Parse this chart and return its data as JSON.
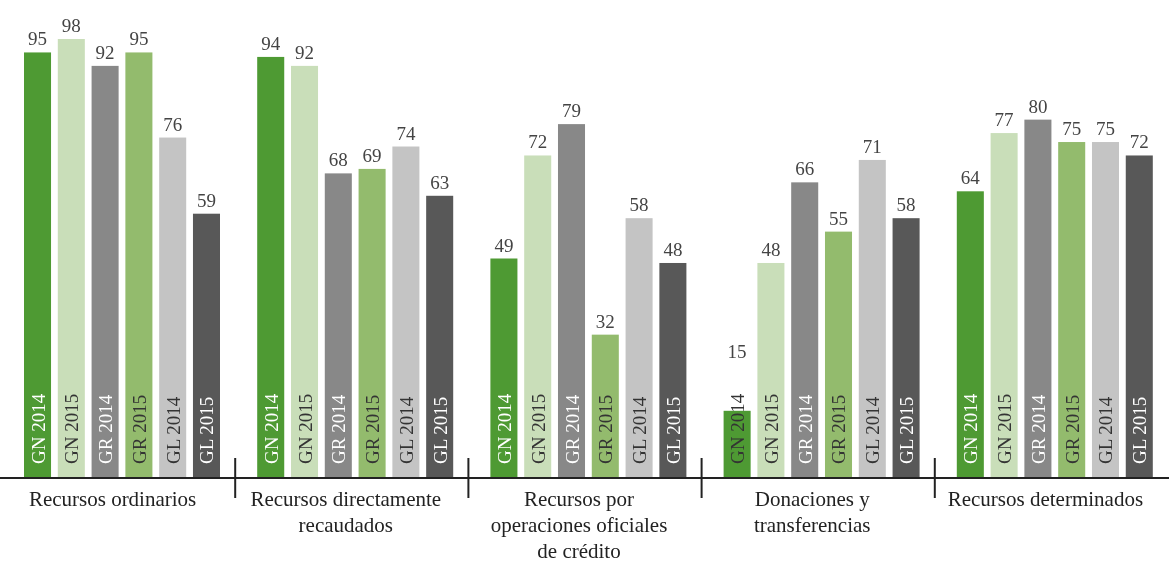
{
  "chart_data": {
    "type": "bar",
    "categories": [
      "Recursos ordinarios",
      "Recursos directamente recaudados",
      "Recursos por operaciones oficiales de crédito",
      "Donaciones y transferencias",
      "Recursos determinados"
    ],
    "series": [
      {
        "name": "GN 2014",
        "color": "#4e9a33",
        "values": [
          95,
          94,
          49,
          15,
          64
        ]
      },
      {
        "name": "GN 2015",
        "color": "#c9deb9",
        "values": [
          98,
          92,
          72,
          48,
          77
        ]
      },
      {
        "name": "GR 2014",
        "color": "#888888",
        "values": [
          92,
          68,
          79,
          66,
          80
        ]
      },
      {
        "name": "GR 2015",
        "color": "#93bb6d",
        "values": [
          95,
          69,
          32,
          55,
          75
        ]
      },
      {
        "name": "GL 2014",
        "color": "#c4c4c4",
        "values": [
          76,
          74,
          58,
          71,
          75
        ]
      },
      {
        "name": "GL 2015",
        "color": "#585858",
        "values": [
          59,
          63,
          48,
          58,
          72
        ]
      }
    ],
    "data_labels": true
  }
}
